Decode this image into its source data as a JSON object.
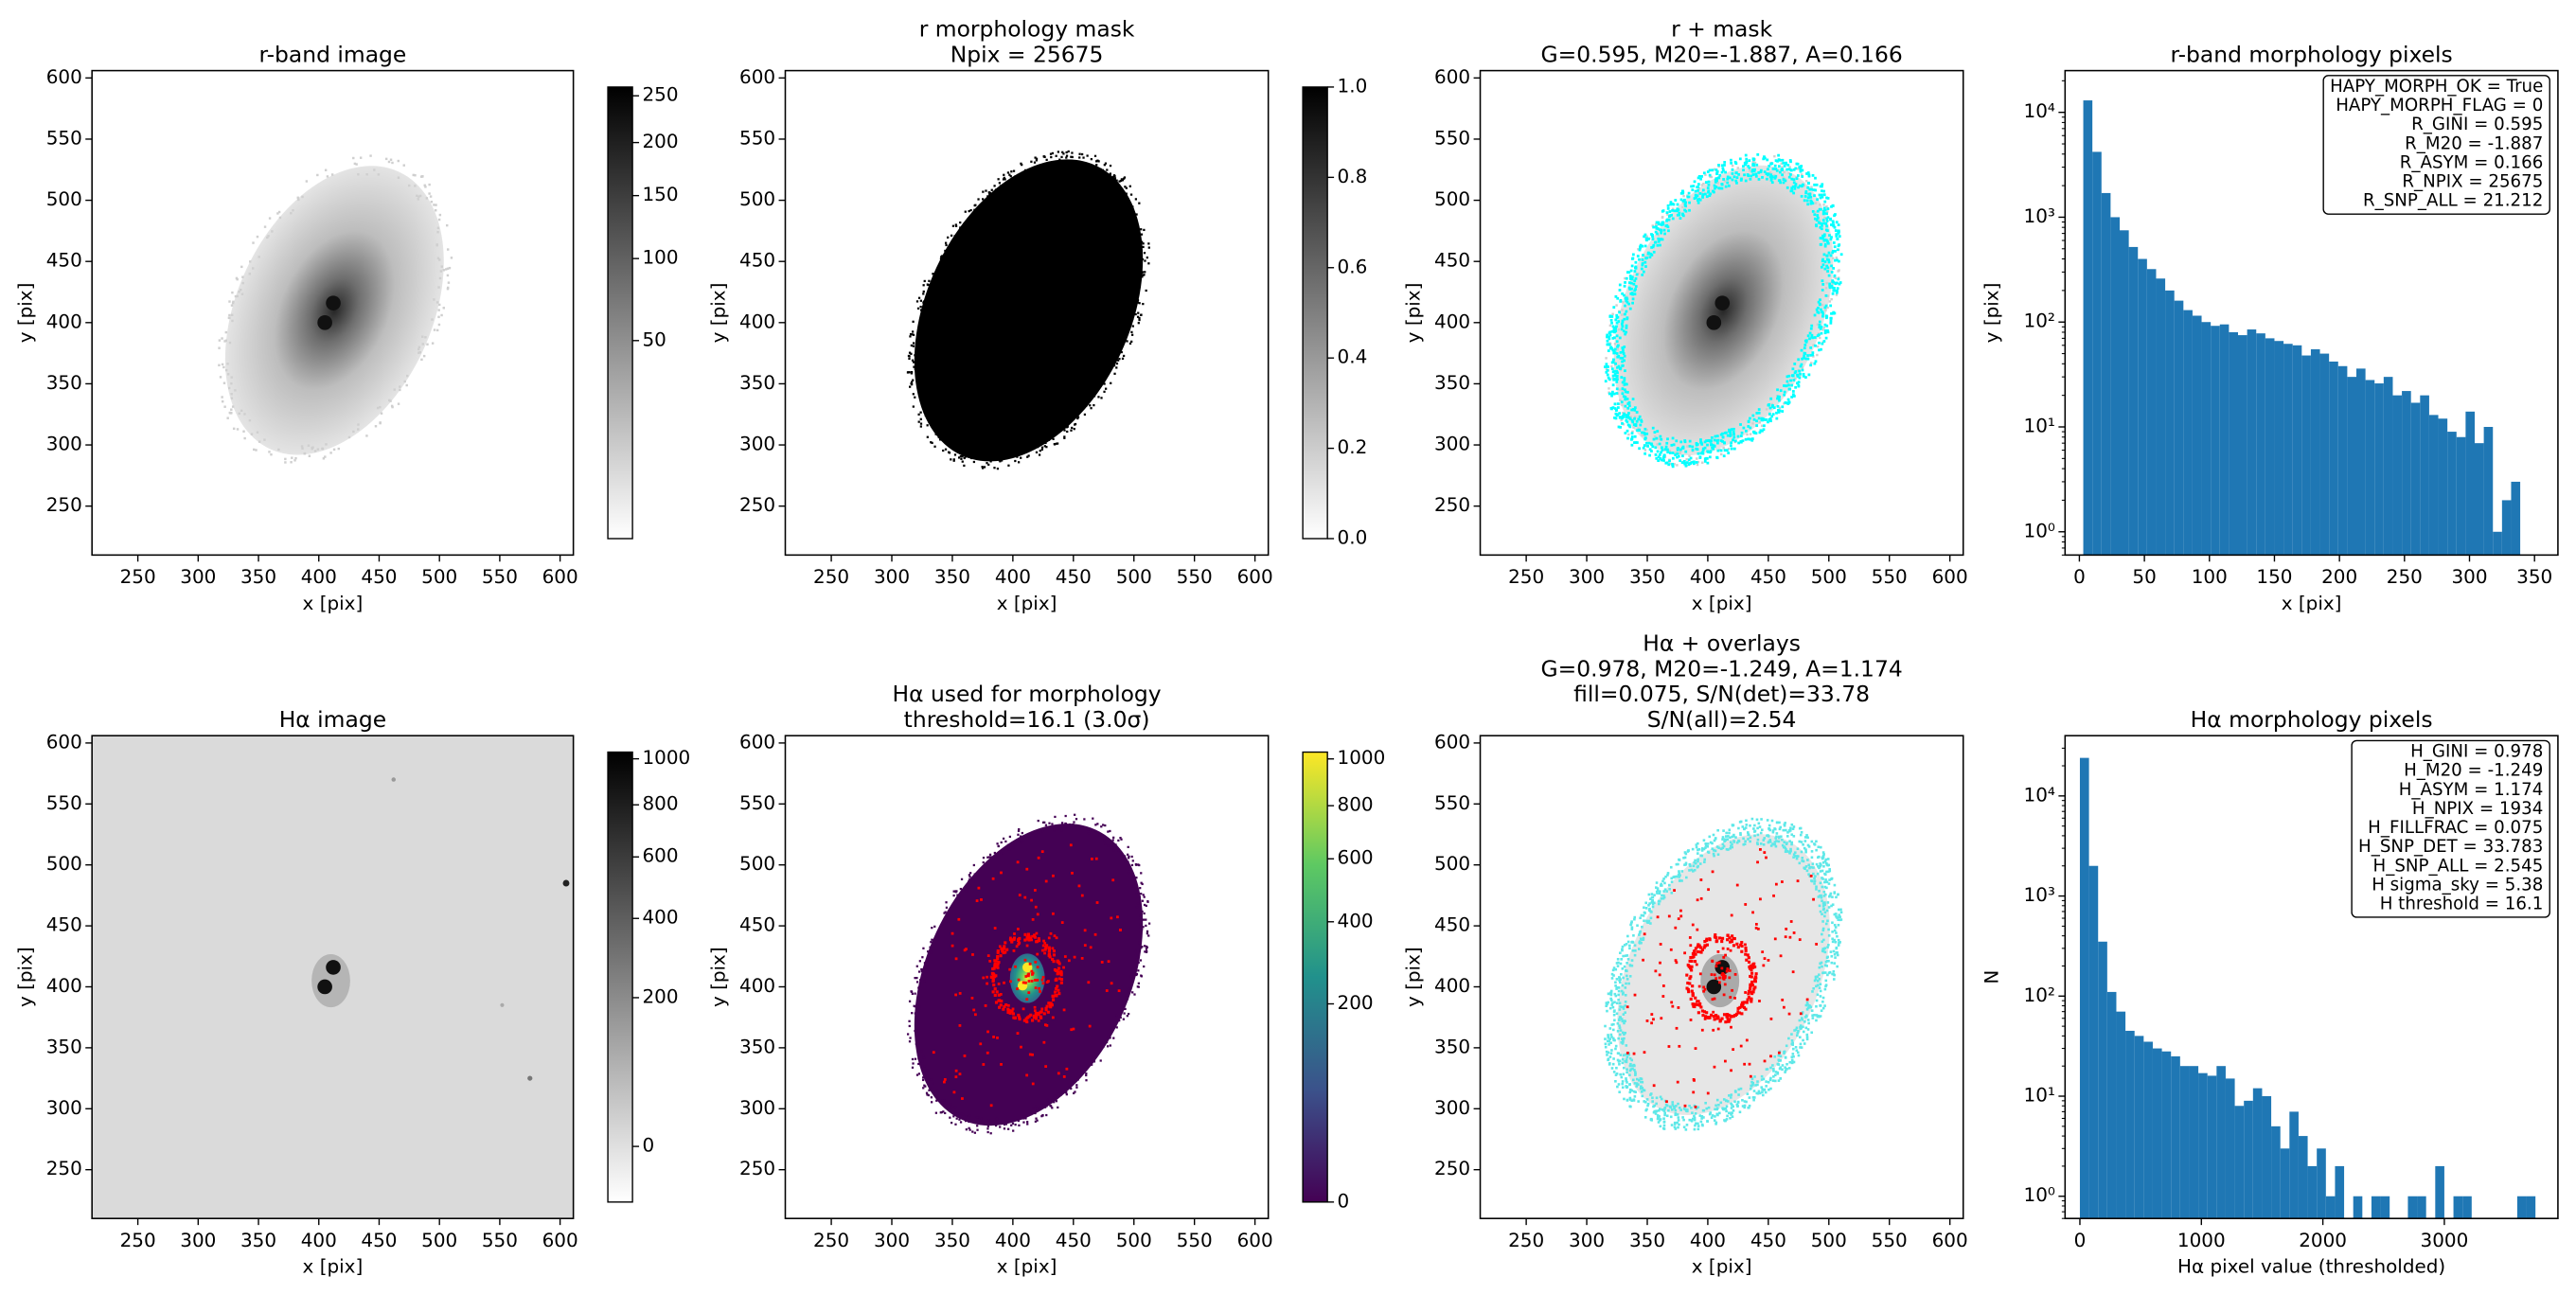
{
  "chart_data": [
    {
      "type": "image",
      "title": [
        "r-band image"
      ],
      "xlabel": "x [pix]",
      "ylabel": "y [pix]",
      "xlim": [
        212,
        611
      ],
      "ylim": [
        210,
        606
      ],
      "xticks": [
        250,
        300,
        350,
        400,
        450,
        500,
        550,
        600
      ],
      "yticks": [
        250,
        300,
        350,
        400,
        450,
        500,
        550,
        600
      ],
      "cmap": "gray_r",
      "clim": [
        0,
        260
      ],
      "cscale": "sqrt",
      "cticks": [
        50,
        100,
        150,
        200,
        250
      ]
    },
    {
      "type": "image",
      "title": [
        "r morphology mask",
        "Npix = 25675"
      ],
      "xlabel": "x [pix]",
      "ylabel": "y [pix]",
      "xlim": [
        212,
        611
      ],
      "ylim": [
        210,
        606
      ],
      "xticks": [
        250,
        300,
        350,
        400,
        450,
        500,
        550,
        600
      ],
      "yticks": [
        250,
        300,
        350,
        400,
        450,
        500,
        550,
        600
      ],
      "cmap": "gray_r",
      "clim": [
        0,
        1
      ],
      "cscale": "linear",
      "cticks": [
        {
          "value": 0,
          "label": "0.0"
        },
        0.2,
        0.4,
        0.6,
        0.8,
        {
          "value": 1,
          "label": "1.0"
        }
      ]
    },
    {
      "type": "image",
      "title": [
        "r + mask",
        "G=0.595, M20=-1.887, A=0.166"
      ],
      "xlabel": "x [pix]",
      "ylabel": "y [pix]",
      "xlim": [
        212,
        611
      ],
      "ylim": [
        210,
        606
      ],
      "xticks": [
        250,
        300,
        350,
        400,
        450,
        500,
        550,
        600
      ],
      "yticks": [
        250,
        300,
        350,
        400,
        450,
        500,
        550,
        600
      ],
      "cmap": "gray_r"
    },
    {
      "type": "histogram",
      "title": [
        "r-band morphology pixels"
      ],
      "xlabel": "x [pix]",
      "ylabel": "y [pix]",
      "color": "#1f77b4",
      "bins": [
        3,
        10,
        17,
        24,
        31,
        38,
        45,
        52,
        59,
        66,
        73,
        80,
        87,
        94,
        101,
        108,
        115,
        122,
        129,
        136,
        143,
        150,
        157,
        164,
        171,
        178,
        185,
        192,
        199,
        206,
        213,
        220,
        227,
        234,
        241,
        248,
        255,
        262,
        269,
        276,
        283,
        290,
        297,
        304,
        311,
        318,
        325,
        332,
        339
      ],
      "counts": [
        13000,
        4200,
        1700,
        1000,
        750,
        520,
        400,
        320,
        260,
        200,
        160,
        130,
        115,
        100,
        92,
        95,
        80,
        75,
        85,
        78,
        70,
        66,
        62,
        60,
        48,
        55,
        50,
        42,
        38,
        30,
        36,
        28,
        26,
        30,
        20,
        22,
        17,
        20,
        13,
        12,
        9,
        8,
        14,
        7,
        10,
        1,
        2,
        3
      ],
      "xlim": [
        -11,
        368
      ],
      "xticks": [
        0,
        50,
        100,
        150,
        200,
        250,
        300,
        350
      ],
      "log_y": true,
      "ylim": [
        0.6,
        25000
      ],
      "yticks": [
        {
          "value": 1,
          "label": "10⁰"
        },
        {
          "value": 10,
          "label": "10¹"
        },
        {
          "value": 100,
          "label": "10²"
        },
        {
          "value": 1000,
          "label": "10³"
        },
        {
          "value": 10000,
          "label": "10⁴"
        }
      ],
      "annotation": [
        "HAPY_MORPH_OK = True",
        "HAPY_MORPH_FLAG = 0",
        "R_GINI = 0.595",
        "R_M20 = -1.887",
        "R_ASYM = 0.166",
        "R_NPIX = 25675",
        "R_SNP_ALL = 21.212"
      ]
    },
    {
      "type": "image",
      "title": [
        "Hα image"
      ],
      "xlabel": "x [pix]",
      "ylabel": "y [pix]",
      "xlim": [
        212,
        611
      ],
      "ylim": [
        210,
        606
      ],
      "xticks": [
        250,
        300,
        350,
        400,
        450,
        500,
        550,
        600
      ],
      "yticks": [
        250,
        300,
        350,
        400,
        450,
        500,
        550,
        600
      ],
      "cmap": "gray_r",
      "clim": [
        -16,
        1031
      ],
      "cscale": "sqrt",
      "cticks": [
        0,
        200,
        400,
        600,
        800,
        1000
      ]
    },
    {
      "type": "image",
      "title": [
        "Hα used for morphology",
        "threshold=16.1 (3.0σ)"
      ],
      "xlabel": "x [pix]",
      "ylabel": "y [pix]",
      "xlim": [
        212,
        611
      ],
      "ylim": [
        210,
        606
      ],
      "xticks": [
        250,
        300,
        350,
        400,
        450,
        500,
        550,
        600
      ],
      "yticks": [
        250,
        300,
        350,
        400,
        450,
        500,
        550,
        600
      ],
      "cmap": "viridis",
      "clim": [
        0,
        1031
      ],
      "cscale": "sqrt",
      "cticks": [
        0,
        200,
        400,
        600,
        800,
        1000
      ]
    },
    {
      "type": "image",
      "title": [
        "Hα + overlays",
        "G=0.978, M20=-1.249, A=1.174",
        "fill=0.075, S/N(det)=33.78",
        "S/N(all)=2.54"
      ],
      "xlabel": "x [pix]",
      "ylabel": "y [pix]",
      "xlim": [
        212,
        611
      ],
      "ylim": [
        210,
        606
      ],
      "xticks": [
        250,
        300,
        350,
        400,
        450,
        500,
        550,
        600
      ],
      "yticks": [
        250,
        300,
        350,
        400,
        450,
        500,
        550,
        600
      ],
      "cmap": "gray_r"
    },
    {
      "type": "histogram",
      "title": [
        "Hα morphology pixels"
      ],
      "xlabel": "Hα pixel value (thresholded)",
      "ylabel": "N",
      "color": "#1f77b4",
      "bins": [
        0,
        75,
        150,
        225,
        300,
        375,
        450,
        525,
        600,
        675,
        750,
        825,
        900,
        975,
        1050,
        1125,
        1200,
        1275,
        1350,
        1425,
        1500,
        1575,
        1650,
        1725,
        1800,
        1875,
        1950,
        2025,
        2100,
        2175,
        2250,
        2325,
        2400,
        2475,
        2550,
        2625,
        2700,
        2775,
        2850,
        2925,
        3000,
        3075,
        3150,
        3225,
        3300,
        3375,
        3450,
        3525,
        3600,
        3675,
        3750
      ],
      "counts": [
        24000,
        2000,
        350,
        110,
        70,
        45,
        40,
        35,
        30,
        28,
        25,
        20,
        20,
        17,
        16,
        20,
        15,
        8,
        9,
        12,
        10,
        5,
        3,
        7,
        4,
        2,
        3,
        1,
        2,
        0,
        1,
        0,
        1,
        1,
        0,
        0,
        1,
        1,
        0,
        2,
        0,
        1,
        1,
        0,
        0,
        0,
        0,
        0,
        1,
        1
      ],
      "xlim": [
        -122,
        3935
      ],
      "xticks": [
        0,
        1000,
        2000,
        3000
      ],
      "log_y": true,
      "ylim": [
        0.6,
        40000
      ],
      "yticks": [
        {
          "value": 1,
          "label": "10⁰"
        },
        {
          "value": 10,
          "label": "10¹"
        },
        {
          "value": 100,
          "label": "10²"
        },
        {
          "value": 1000,
          "label": "10³"
        },
        {
          "value": 10000,
          "label": "10⁴"
        }
      ],
      "annotation": [
        "H_GINI = 0.978",
        "H_M20 = -1.249",
        "H_ASYM = 1.174",
        "H_NPIX = 1934",
        "H_FILLFRAC = 0.075",
        "H_SNP_DET = 33.783",
        "H_SNP_ALL = 2.545",
        "H sigma_sky = 5.38",
        "H threshold = 16.1"
      ]
    }
  ]
}
